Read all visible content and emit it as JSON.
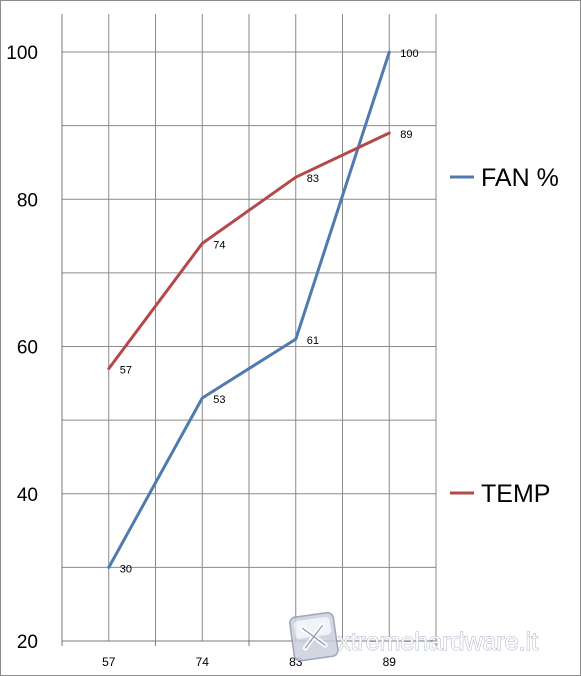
{
  "chart_data": {
    "type": "line",
    "categories": [
      "57",
      "74",
      "83",
      "89"
    ],
    "series": [
      {
        "name": "FAN %",
        "values": [
          30,
          53,
          61,
          100
        ],
        "color": "#4f7cad"
      },
      {
        "name": "TEMP",
        "values": [
          57,
          74,
          83,
          89
        ],
        "color": "#b4494a"
      }
    ],
    "yticks": [
      "100",
      "80",
      "60",
      "40",
      "20"
    ],
    "ylim": [
      20,
      100
    ],
    "grid": true,
    "legend_position": "right"
  },
  "watermark": {
    "text": "xtremehardware.it"
  }
}
